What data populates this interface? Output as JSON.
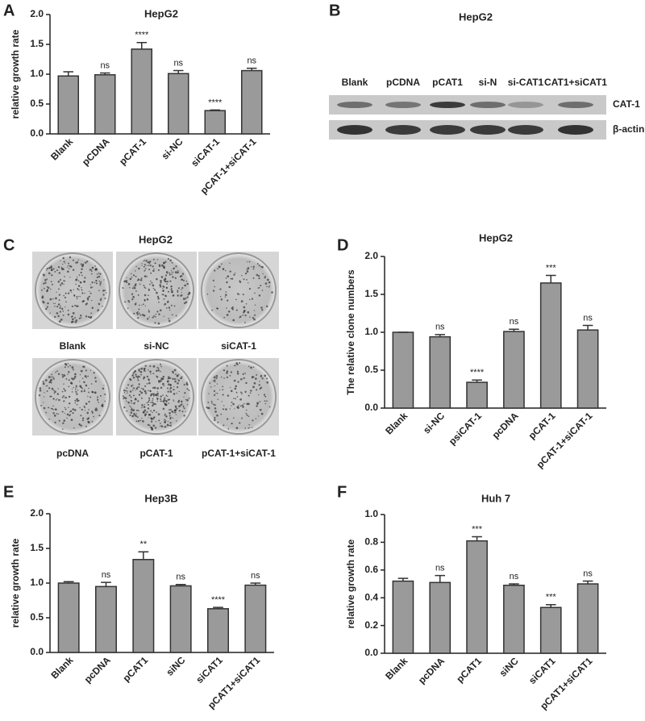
{
  "chart_data": [
    {
      "type": "bar",
      "panel": "A",
      "title": "HepG2",
      "ylabel": "relative growth rate",
      "categories": [
        "Blank",
        "pCDNA",
        "pCAT-1",
        "si-NC",
        "siCAT-1",
        "pCAT-1+siCAT-1"
      ],
      "values": [
        0.97,
        0.99,
        1.42,
        1.01,
        0.39,
        1.06
      ],
      "errors": [
        0.07,
        0.03,
        0.11,
        0.05,
        0.01,
        0.04
      ],
      "annotations": [
        null,
        "ns",
        "****",
        "ns",
        "****",
        "ns"
      ],
      "color": "#9a9a9a",
      "ylim": [
        0,
        2.0
      ],
      "yticks": [
        {
          "value": 0,
          "label": "0.0"
        },
        0.5,
        {
          "value": 1,
          "label": "1.0"
        },
        1.5,
        {
          "value": 2,
          "label": "2.0"
        }
      ]
    },
    {
      "type": "bar",
      "panel": "D",
      "title": "HepG2",
      "ylabel": "The relative clone numbers",
      "categories": [
        "Blank",
        "si-NC",
        "psiCAT-1",
        "pcDNA",
        "pCAT-1",
        "pCAT-1+siCAT-1"
      ],
      "values": [
        1.0,
        0.94,
        0.34,
        1.01,
        1.65,
        1.03
      ],
      "errors": [
        0,
        0.03,
        0.03,
        0.03,
        0.1,
        0.06
      ],
      "annotations": [
        null,
        "ns",
        "****",
        "ns",
        "***",
        "ns"
      ],
      "color": "#9a9a9a",
      "ylim": [
        0,
        2.0
      ],
      "yticks": [
        {
          "value": 0,
          "label": "0.0"
        },
        0.5,
        {
          "value": 1,
          "label": "1.0"
        },
        1.5,
        {
          "value": 2,
          "label": "2.0"
        }
      ]
    },
    {
      "type": "bar",
      "panel": "E",
      "title": "Hep3B",
      "ylabel": "relative growth rate",
      "categories": [
        "Blank",
        "pcDNA",
        "pCAT1",
        "siNC",
        "siCAT1",
        "pCAT1+siCAT1"
      ],
      "values": [
        1.0,
        0.95,
        1.34,
        0.96,
        0.63,
        0.97
      ],
      "errors": [
        0.02,
        0.06,
        0.11,
        0.02,
        0.02,
        0.03
      ],
      "annotations": [
        null,
        "ns",
        "**",
        "ns",
        "****",
        "ns"
      ],
      "color": "#9a9a9a",
      "ylim": [
        0,
        2.0
      ],
      "yticks": [
        {
          "value": 0,
          "label": "0.0"
        },
        0.5,
        {
          "value": 1,
          "label": "1.0"
        },
        1.5,
        {
          "value": 2,
          "label": "2.0"
        }
      ]
    },
    {
      "type": "bar",
      "panel": "F",
      "title": "Huh 7",
      "ylabel": "relative growth rate",
      "categories": [
        "Blank",
        "pcDNA",
        "pCAT1",
        "siNC",
        "siCAT1",
        "pCAT1+siCAT1"
      ],
      "values": [
        0.52,
        0.51,
        0.81,
        0.49,
        0.33,
        0.5
      ],
      "errors": [
        0.02,
        0.05,
        0.03,
        0.01,
        0.02,
        0.02
      ],
      "annotations": [
        null,
        "ns",
        "***",
        "ns",
        "***",
        "ns"
      ],
      "color": "#9a9a9a",
      "ylim": [
        0,
        1.0
      ],
      "yticks": [
        {
          "value": 0,
          "label": "0.0"
        },
        0.2,
        0.4,
        0.6,
        0.8,
        {
          "value": 1,
          "label": "1.0"
        }
      ]
    }
  ],
  "western_blot": {
    "panel": "B",
    "title": "HepG2",
    "lanes": [
      "Blank",
      "pCDNA",
      "pCAT1",
      "si-N",
      "si-CAT1",
      "CAT1+siCAT1"
    ],
    "bands": [
      "CAT-1",
      "β-actin"
    ]
  },
  "colony_assay": {
    "panel": "C",
    "title": "HepG2",
    "labels": [
      "Blank",
      "si-NC",
      "siCAT-1",
      "pcDNA",
      "pCAT-1",
      "pCAT-1+siCAT-1"
    ]
  }
}
